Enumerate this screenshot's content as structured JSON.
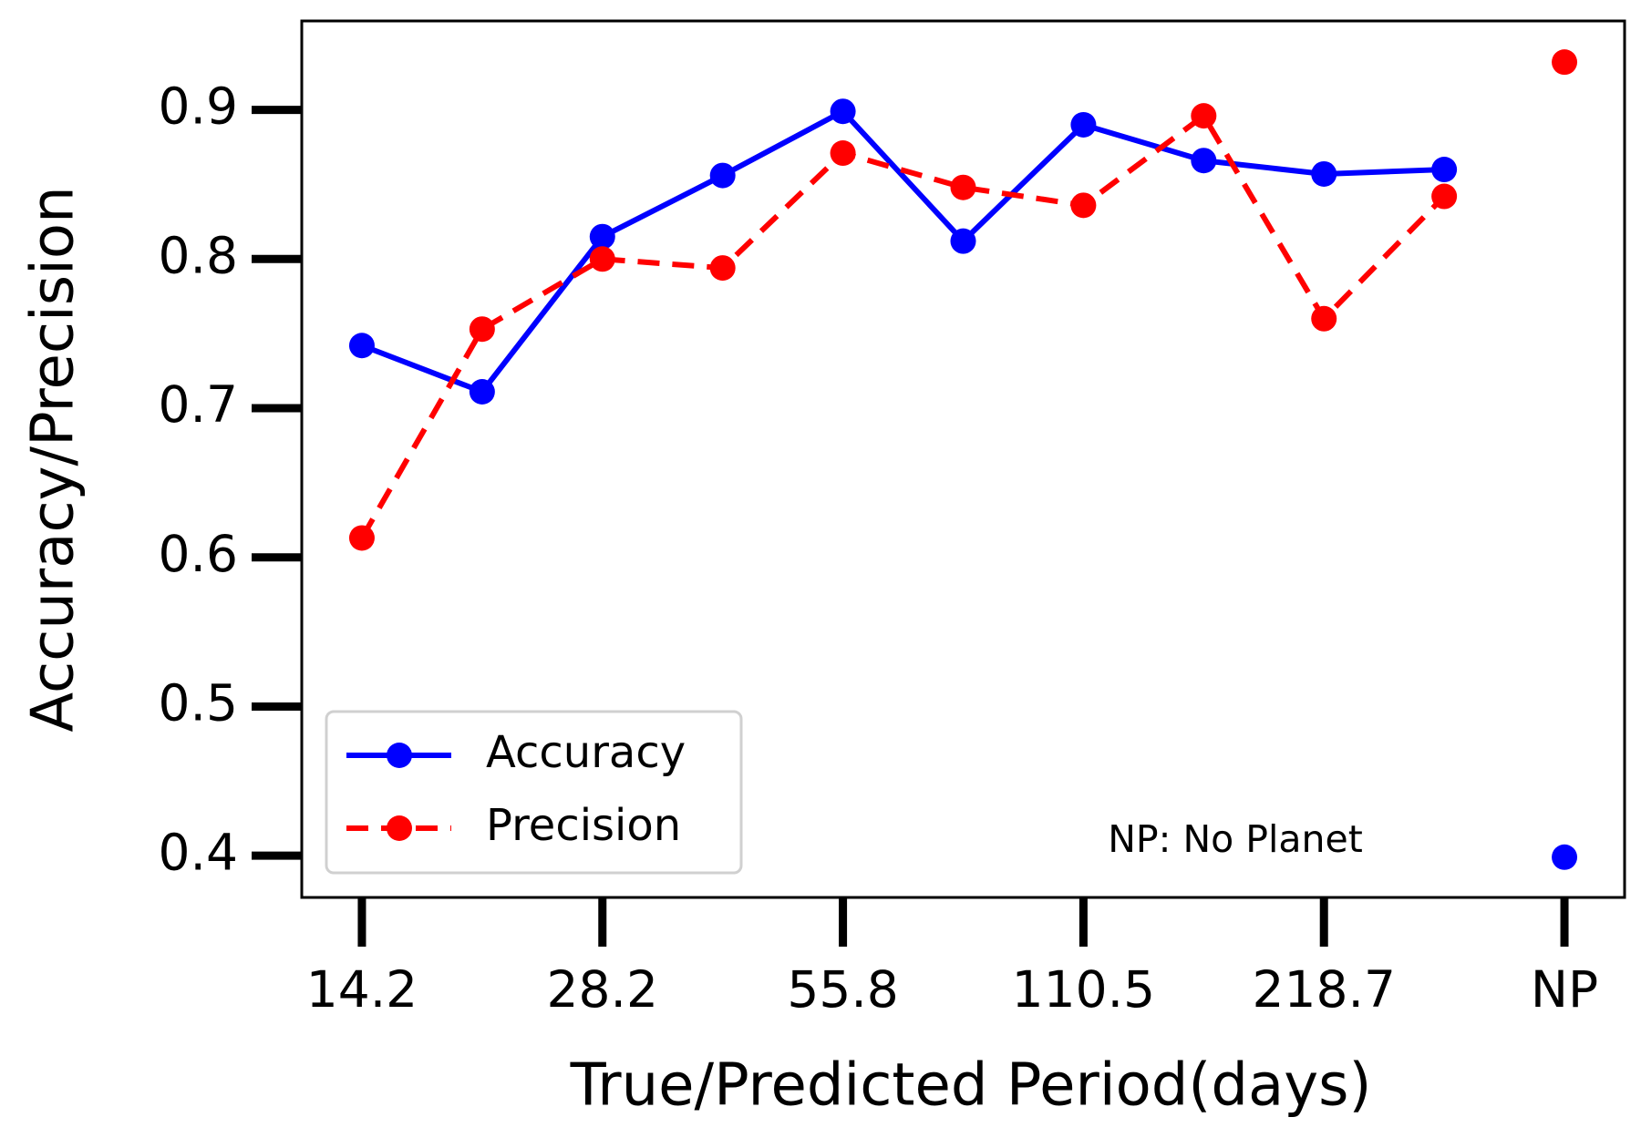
{
  "chart_data": {
    "type": "line",
    "xlabel": "True/Predicted Period(days)",
    "ylabel": "Accuracy/Precision",
    "annotation": "NP: No Planet",
    "categories": [
      "14.2",
      null,
      "28.2",
      null,
      "55.8",
      null,
      "110.5",
      null,
      "218.7",
      null,
      "NP"
    ],
    "connect_last": false,
    "series": [
      {
        "name": "Accuracy",
        "color": "#0000ff",
        "linestyle": "solid",
        "values": [
          0.742,
          0.711,
          0.815,
          0.856,
          0.899,
          0.812,
          0.89,
          0.866,
          0.857,
          0.86,
          0.399
        ]
      },
      {
        "name": "Precision",
        "color": "#ff0000",
        "linestyle": "dashed",
        "values": [
          0.613,
          0.753,
          0.8,
          0.794,
          0.871,
          0.848,
          0.836,
          0.896,
          0.76,
          0.842,
          0.932
        ]
      }
    ],
    "ylim": [
      0.372,
      0.9596
    ],
    "yticks": [
      0.4,
      0.5,
      0.6,
      0.7,
      0.8,
      0.9
    ],
    "legend": "lower left",
    "grid": false
  }
}
